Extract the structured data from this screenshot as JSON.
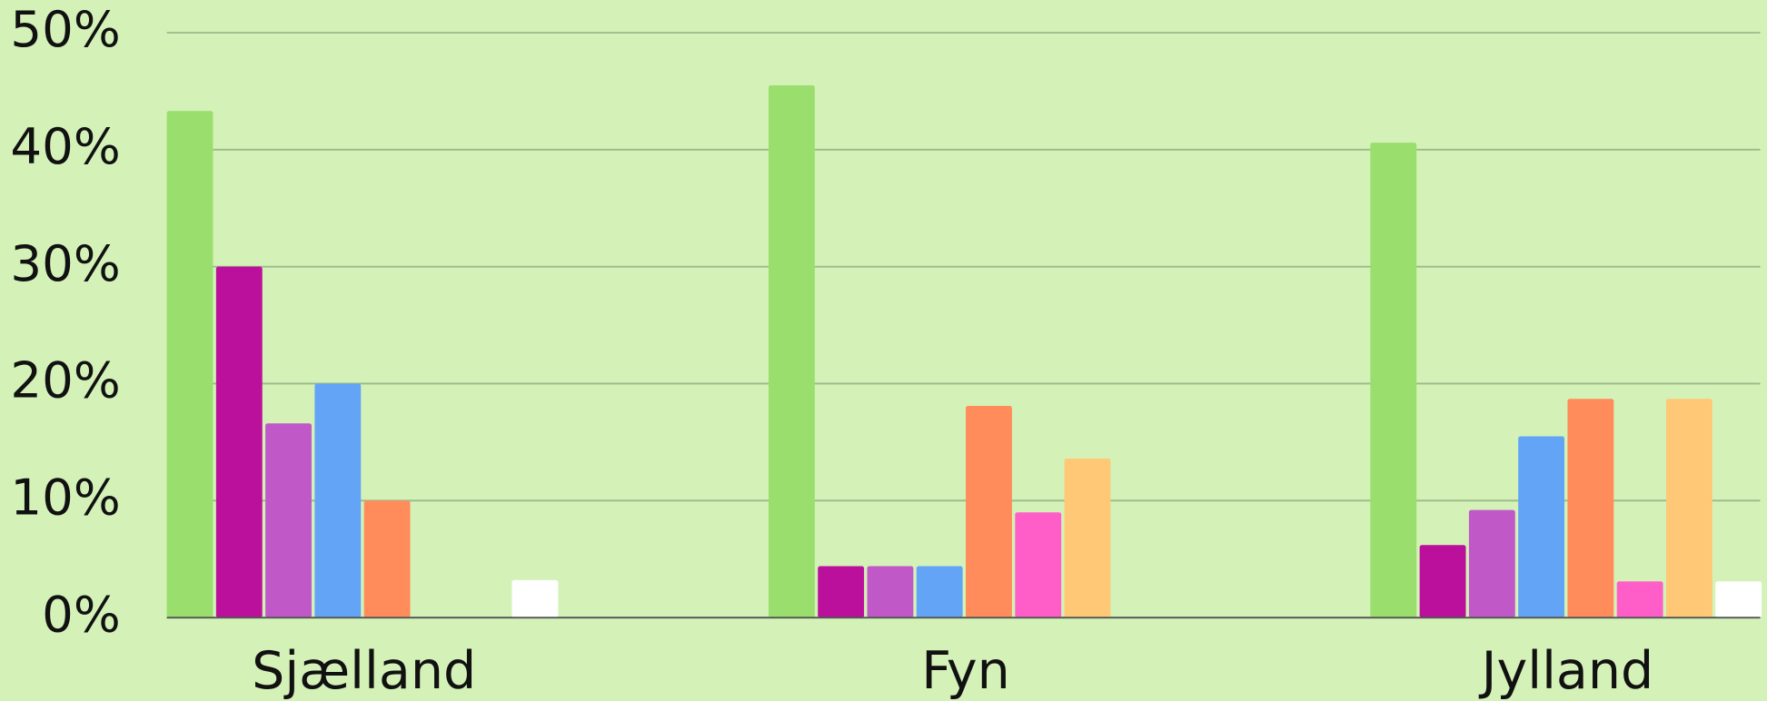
{
  "chart_data": {
    "type": "bar",
    "categories": [
      "Sjælland",
      "Fyn",
      "Jylland"
    ],
    "series": [
      {
        "color": "#9ade6e",
        "values": [
          43.3,
          45.5,
          40.6
        ]
      },
      {
        "color": "#bb109b",
        "values": [
          30.0,
          4.4,
          6.2
        ]
      },
      {
        "color": "#c058c8",
        "values": [
          16.6,
          4.4,
          9.2
        ]
      },
      {
        "color": "#63a4f7",
        "values": [
          20.0,
          4.4,
          15.5
        ]
      },
      {
        "color": "#ff8c5a",
        "values": [
          10.0,
          18.1,
          18.7
        ]
      },
      {
        "color": "#ff5ec8",
        "values": [
          null,
          9.0,
          3.1
        ]
      },
      {
        "color": "#ffc876",
        "values": [
          null,
          13.6,
          18.7
        ]
      },
      {
        "color": "#ffffff",
        "values": [
          3.2,
          null,
          3.1
        ]
      }
    ],
    "ylim": [
      0,
      50
    ],
    "yticks": [
      {
        "value": 0,
        "label": "0%"
      },
      {
        "value": 10,
        "label": "10%"
      },
      {
        "value": 20,
        "label": "20%"
      },
      {
        "value": 30,
        "label": "30%"
      },
      {
        "value": 40,
        "label": "40%"
      },
      {
        "value": 50,
        "label": "50%"
      }
    ],
    "grid": true
  }
}
